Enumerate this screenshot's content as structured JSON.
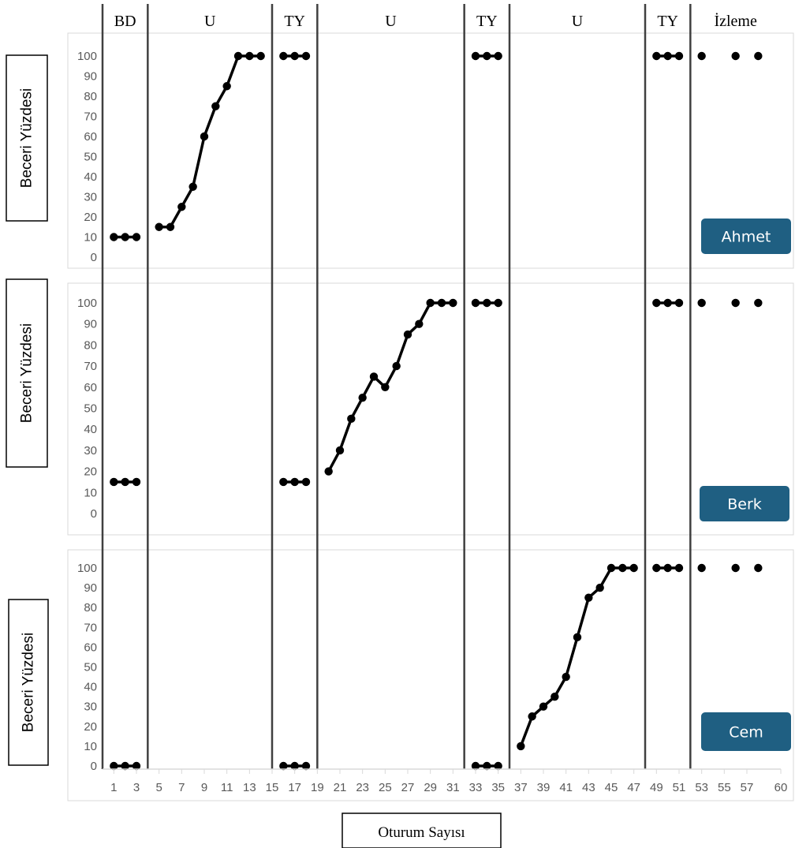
{
  "chart_data": {
    "type": "line",
    "design": "multiple-probe",
    "xlabel": "Oturum Sayısı",
    "ylabel": "Beceri Yüzdesi",
    "xlim": [
      0,
      60
    ],
    "ylim": [
      0,
      100
    ],
    "x_ticks": [
      1,
      3,
      5,
      7,
      9,
      11,
      13,
      15,
      17,
      19,
      21,
      23,
      25,
      27,
      29,
      31,
      33,
      35,
      37,
      39,
      41,
      43,
      45,
      47,
      49,
      51,
      53,
      55,
      57,
      60
    ],
    "y_ticks": [
      0,
      10,
      20,
      30,
      40,
      50,
      60,
      70,
      80,
      90,
      100
    ],
    "phases": [
      {
        "label": "BD",
        "start": 0,
        "end": 4
      },
      {
        "label": "U",
        "start": 4,
        "end": 15
      },
      {
        "label": "TY",
        "start": 15,
        "end": 19
      },
      {
        "label": "U",
        "start": 19,
        "end": 32
      },
      {
        "label": "TY",
        "start": 32,
        "end": 36
      },
      {
        "label": "U",
        "start": 36,
        "end": 48
      },
      {
        "label": "TY",
        "start": 48,
        "end": 52
      },
      {
        "label": "İzleme",
        "start": 52,
        "end": 60
      }
    ],
    "grid": false,
    "series": [
      {
        "name": "Ahmet",
        "segments": [
          {
            "x": [
              1,
              2,
              3
            ],
            "y": [
              10,
              10,
              10
            ]
          },
          {
            "x": [
              5,
              6,
              7,
              8,
              9,
              10,
              11,
              12,
              13,
              14
            ],
            "y": [
              15,
              15,
              25,
              35,
              60,
              75,
              85,
              100,
              100,
              100
            ]
          },
          {
            "x": [
              16,
              17,
              18
            ],
            "y": [
              100,
              100,
              100
            ]
          },
          {
            "x": [
              33,
              34,
              35
            ],
            "y": [
              100,
              100,
              100
            ]
          },
          {
            "x": [
              49,
              50,
              51
            ],
            "y": [
              100,
              100,
              100
            ]
          },
          {
            "x": [
              53
            ],
            "y": [
              100
            ]
          },
          {
            "x": [
              56
            ],
            "y": [
              100
            ]
          },
          {
            "x": [
              58
            ],
            "y": [
              100
            ]
          }
        ]
      },
      {
        "name": "Berk",
        "segments": [
          {
            "x": [
              1,
              2,
              3
            ],
            "y": [
              15,
              15,
              15
            ]
          },
          {
            "x": [
              16,
              17,
              18
            ],
            "y": [
              15,
              15,
              15
            ]
          },
          {
            "x": [
              20,
              21,
              22,
              23,
              24,
              25,
              26,
              27,
              28,
              29,
              30,
              31
            ],
            "y": [
              20,
              30,
              45,
              55,
              65,
              60,
              70,
              85,
              90,
              100,
              100,
              100
            ]
          },
          {
            "x": [
              33,
              34,
              35
            ],
            "y": [
              100,
              100,
              100
            ]
          },
          {
            "x": [
              49,
              50,
              51
            ],
            "y": [
              100,
              100,
              100
            ]
          },
          {
            "x": [
              53
            ],
            "y": [
              100
            ]
          },
          {
            "x": [
              56
            ],
            "y": [
              100
            ]
          },
          {
            "x": [
              58
            ],
            "y": [
              100
            ]
          }
        ]
      },
      {
        "name": "Cem",
        "segments": [
          {
            "x": [
              1,
              2,
              3
            ],
            "y": [
              0,
              0,
              0
            ]
          },
          {
            "x": [
              16,
              17,
              18
            ],
            "y": [
              0,
              0,
              0
            ]
          },
          {
            "x": [
              33,
              34,
              35
            ],
            "y": [
              0,
              0,
              0
            ]
          },
          {
            "x": [
              37,
              38,
              39,
              40,
              41,
              42,
              43,
              44,
              45,
              46,
              47
            ],
            "y": [
              10,
              25,
              30,
              35,
              45,
              65,
              85,
              90,
              100,
              100,
              100
            ]
          },
          {
            "x": [
              49,
              50,
              51
            ],
            "y": [
              100,
              100,
              100
            ]
          },
          {
            "x": [
              53
            ],
            "y": [
              100
            ]
          },
          {
            "x": [
              56
            ],
            "y": [
              100
            ]
          },
          {
            "x": [
              58
            ],
            "y": [
              100
            ]
          }
        ]
      }
    ],
    "colors": {
      "line": "#000000",
      "phase_line": "#404040",
      "badge": "#1f5f82",
      "frame": "#d9d9d9",
      "tick_text": "#595959"
    }
  }
}
